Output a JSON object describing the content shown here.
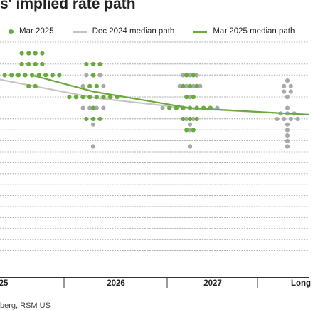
{
  "title": "s' implied rate path",
  "legend": {
    "mar_dots": "Mar 2025",
    "dec_median": "Dec 2024 median path",
    "mar_median": "Mar 2025 median path"
  },
  "source": "berg, RSM US",
  "colors": {
    "mar": "#6aaa3c",
    "dec": "#a9a9a9",
    "grid": "#9a9a9a",
    "text": "#222222"
  },
  "chart_data": {
    "type": "scatter",
    "title": "s' implied rate path",
    "categories": [
      "25",
      "2026",
      "2027",
      "Long"
    ],
    "grid": true,
    "series": [
      {
        "name": "Mar 2025",
        "points": [
          {
            "x": "25",
            "y": 12,
            "count": 4
          },
          {
            "x": "25",
            "y": 10,
            "count": 4
          },
          {
            "x": "25",
            "y": 8,
            "count": 9
          },
          {
            "x": "25",
            "y": 6,
            "count": 2
          },
          {
            "x": "2026",
            "y": 10,
            "count": 3
          },
          {
            "x": "2026",
            "y": 8,
            "count": 1
          },
          {
            "x": "2026",
            "y": 6,
            "count": 2
          },
          {
            "x": "2026",
            "y": 4,
            "count": 8
          },
          {
            "x": "2026",
            "y": 2,
            "count": 1
          },
          {
            "x": "2026",
            "y": 0,
            "count": 3
          },
          {
            "x": "2027",
            "y": 8,
            "count": 2
          },
          {
            "x": "2027",
            "y": 6,
            "count": 3
          },
          {
            "x": "2027",
            "y": 4,
            "count": 2
          },
          {
            "x": "2027",
            "y": 2,
            "count": 7
          },
          {
            "x": "2027",
            "y": 0,
            "count": 3
          },
          {
            "x": "2027",
            "y": -2,
            "count": 2
          }
        ]
      },
      {
        "name": "Dec 2024",
        "points": [
          {
            "x": "2026",
            "y": 8,
            "count": 3
          },
          {
            "x": "2026",
            "y": 6,
            "count": 4
          },
          {
            "x": "2026",
            "y": 4,
            "count": 6
          },
          {
            "x": "2026",
            "y": 2,
            "count": 4
          },
          {
            "x": "2026",
            "y": 0,
            "count": 1
          },
          {
            "x": "2026",
            "y": -1,
            "count": 1
          },
          {
            "x": "2026",
            "y": -5,
            "count": 1
          },
          {
            "x": "2027",
            "y": 8,
            "count": 3
          },
          {
            "x": "2027",
            "y": 6,
            "count": 4
          },
          {
            "x": "2027",
            "y": 4,
            "count": 1
          },
          {
            "x": "2027",
            "y": 2,
            "count": 9
          },
          {
            "x": "2027",
            "y": 0,
            "count": 2
          },
          {
            "x": "2027",
            "y": -1,
            "count": 1
          },
          {
            "x": "2027",
            "y": -2,
            "count": 1
          },
          {
            "x": "2027",
            "y": -5,
            "count": 1
          },
          {
            "x": "Long",
            "y": 7,
            "count": 1
          },
          {
            "x": "Long",
            "y": 6,
            "count": 2
          },
          {
            "x": "Long",
            "y": 5,
            "count": 2
          },
          {
            "x": "Long",
            "y": 4,
            "count": 1
          },
          {
            "x": "Long",
            "y": 2,
            "count": 1
          },
          {
            "x": "Long",
            "y": 1,
            "count": 3
          },
          {
            "x": "Long",
            "y": 0,
            "count": 4
          },
          {
            "x": "Long",
            "y": -1,
            "count": 1
          },
          {
            "x": "Long",
            "y": -2,
            "count": 1
          },
          {
            "x": "Long",
            "y": -3,
            "count": 1
          },
          {
            "x": "Long",
            "y": -4,
            "count": 1
          },
          {
            "x": "Long",
            "y": -5,
            "count": 1
          }
        ]
      },
      {
        "name": "Dec 2024 median path",
        "type": "line",
        "values": [
          {
            "x": "-0.15",
            "y": 7.2
          },
          {
            "x": "2026",
            "y": 3.9
          },
          {
            "x": "2027",
            "y": 1.9
          },
          {
            "x": "Long",
            "y": 1.0
          }
        ]
      },
      {
        "name": "Mar 2025 median path",
        "type": "line",
        "values": [
          {
            "x": "25",
            "y": 8
          },
          {
            "x": "2026",
            "y": 5
          },
          {
            "x": "2027",
            "y": 2
          },
          {
            "x": "Long",
            "y": 1.0
          }
        ]
      }
    ],
    "ylim": [
      -6,
      16
    ]
  }
}
